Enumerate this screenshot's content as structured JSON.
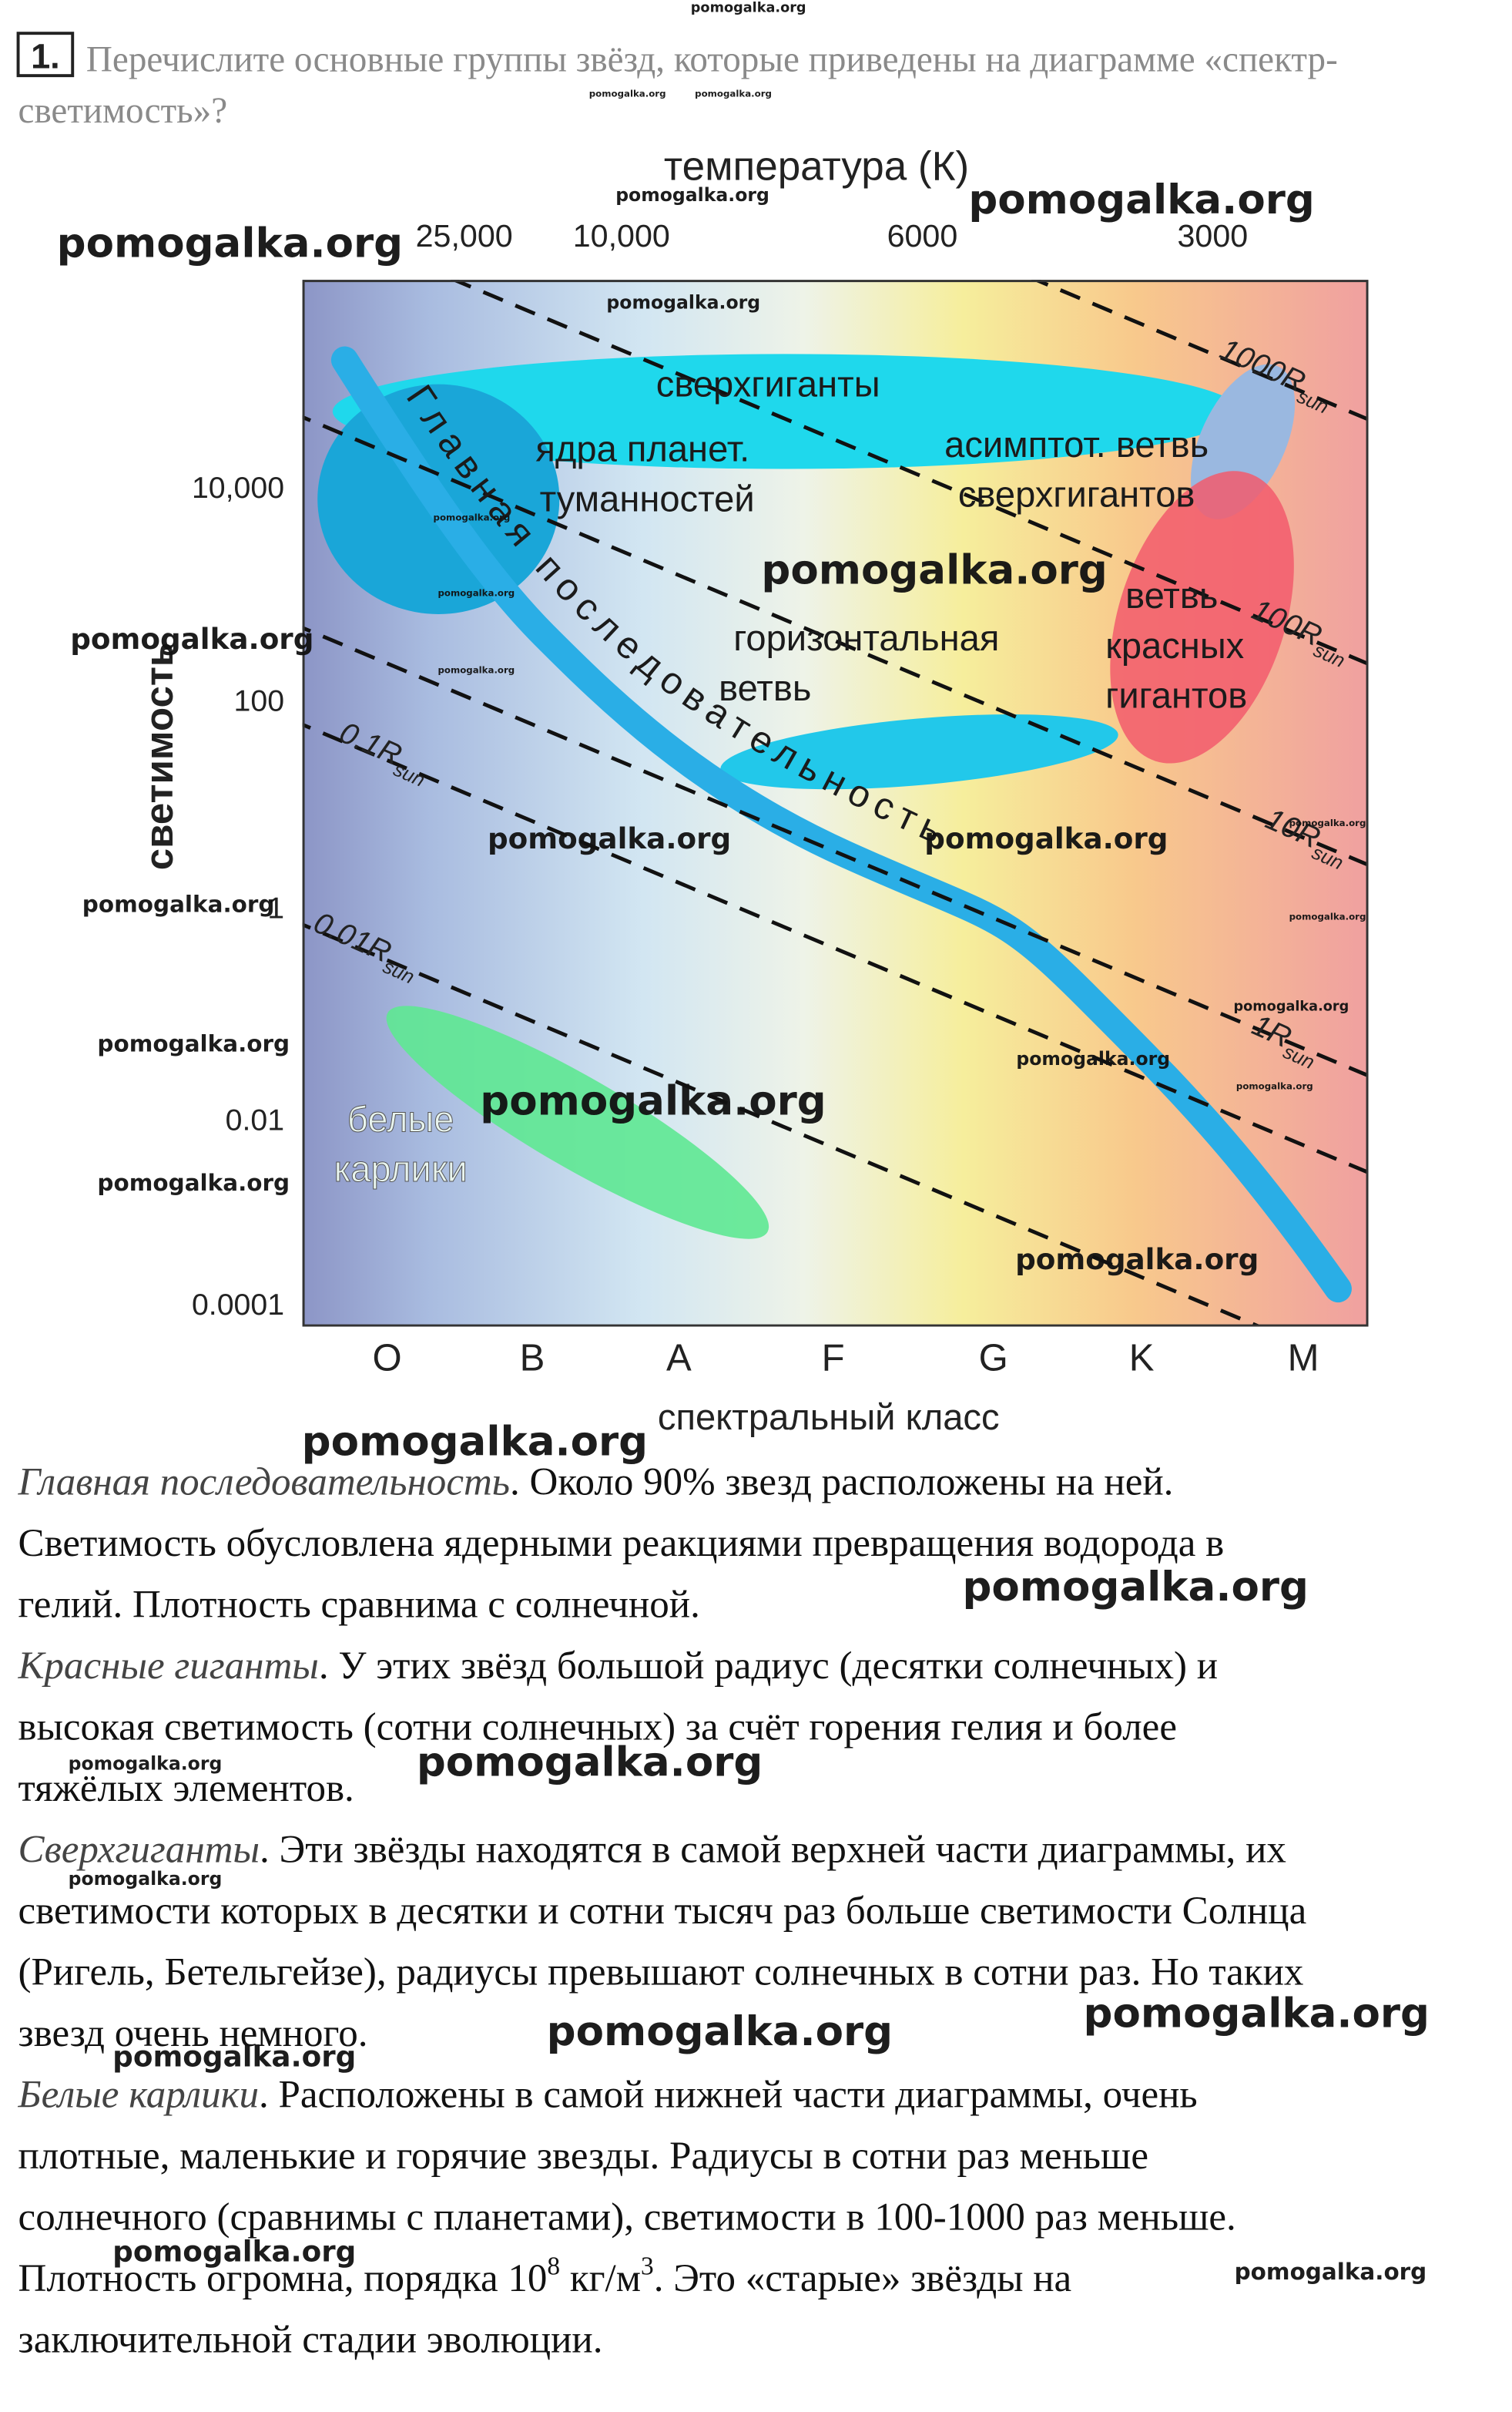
{
  "question": {
    "number": "1.",
    "lines": [
      "Перечислите основные группы звёзд, которые приведены на диаграмме «спектр-",
      "светимость»?"
    ]
  },
  "diagram": {
    "title": "температура (К)",
    "top_ticks": [
      "25,000",
      "10,000",
      "6000",
      "3000"
    ],
    "left_ticks": [
      "10,000",
      "100",
      "1",
      "0.01",
      "0.0001"
    ],
    "y_label": "светимость",
    "bottom_ticks": [
      "O",
      "B",
      "A",
      "F",
      "G",
      "K",
      "M"
    ],
    "x_label": "спектральный класс",
    "regions": [
      {
        "lines": [
          "сверхгиганты"
        ]
      },
      {
        "lines": [
          "ядра планет.",
          "туманностей"
        ]
      },
      {
        "lines": [
          "асимптот. ветвь",
          "сверхгигантов"
        ]
      },
      {
        "lines": [
          "горизонтальная",
          "ветвь"
        ]
      },
      {
        "lines": [
          "ветвь",
          "красных",
          "гигантов"
        ]
      },
      {
        "lines": [
          "белые",
          "карлики"
        ]
      }
    ],
    "main_sequence": "Главная последовательность",
    "radius_lines": [
      {
        "text": "1000R",
        "sub": "sun"
      },
      {
        "text": "100R",
        "sub": "sun"
      },
      {
        "text": "10R",
        "sub": "sun"
      },
      {
        "text": "1R",
        "sub": "sun"
      },
      {
        "text": "0.1R",
        "sub": "sun"
      },
      {
        "text": "0.01R",
        "sub": "sun"
      }
    ]
  },
  "paragraphs": [
    {
      "lines": [
        [
          {
            "text": "Главная последовательность",
            "style": "italic"
          },
          {
            "text": ". Около 90% звезд расположены на ней.",
            "style": "normal"
          }
        ],
        [
          {
            "text": "Светимость обусловлена ядерными реакциями превращения водорода в",
            "style": "normal"
          }
        ],
        [
          {
            "text": "гелий. Плотность сравнима с солнечной.",
            "style": "normal"
          }
        ]
      ]
    },
    {
      "lines": [
        [
          {
            "text": "Красные гиганты",
            "style": "italic"
          },
          {
            "text": ". У этих звёзд большой радиус (десятки солнечных) и",
            "style": "normal"
          }
        ],
        [
          {
            "text": "высокая светимость (сотни солнечных) за счёт горения гелия и более",
            "style": "normal"
          }
        ],
        [
          {
            "text": "тяжёлых элементов.",
            "style": "normal"
          }
        ]
      ]
    },
    {
      "lines": [
        [
          {
            "text": "Сверхгиганты",
            "style": "italic"
          },
          {
            "text": ".  Эти звёзды находятся в самой верхней части диаграммы, их",
            "style": "normal"
          }
        ],
        [
          {
            "text": "светимости которых в десятки и сотни тысяч раз больше светимости Солнца",
            "style": "normal"
          }
        ],
        [
          {
            "text": "(Ригель, Бетельгейзе), радиусы превышают солнечных в сотни раз. Но таких",
            "style": "normal"
          }
        ],
        [
          {
            "text": "звезд очень немного.",
            "style": "normal"
          }
        ]
      ]
    },
    {
      "lines": [
        [
          {
            "text": "Белые карлики",
            "style": "italic"
          },
          {
            "text": ". Расположены в самой нижней части диаграммы, очень",
            "style": "normal"
          }
        ],
        [
          {
            "text": "плотные, маленькие и горячие звезды. Радиусы в сотни раз меньше",
            "style": "normal"
          }
        ],
        [
          {
            "text": "солнечного (сравнимы с планетами), светимости в 100-1000 раз меньше.",
            "style": "normal"
          }
        ],
        [
          {
            "text": "Плотность огромна, порядка 10",
            "style": "normal"
          },
          {
            "text": "8",
            "style": "sup"
          },
          {
            "text": " кг/м",
            "style": "normal"
          },
          {
            "text": "3",
            "style": "sup"
          },
          {
            "text": ". Это «старые» звёзды на",
            "style": "normal"
          }
        ],
        [
          {
            "text": "заключительной стадии эволюции.",
            "style": "normal"
          }
        ]
      ]
    }
  ],
  "watermarks": [
    "pomogalka.org",
    "pomogalka.org",
    "pomogalka.org",
    "pomogalka.org",
    "pomogalka.org",
    "pomogalka.org",
    "pomogalka.org",
    "pomogalka.org",
    "pomogalka.org",
    "pomogalka.org",
    "pomogalka.org",
    "pomogalka.org",
    "pomogalka.org",
    "pomogalka.org",
    "pomogalka.org",
    "pomogalka.org",
    "pomogalka.org",
    "pomogalka.org",
    "pomogalka.org",
    "pomogalka.org",
    "pomogalka.org",
    "pomogalka.org",
    "pomogalka.org",
    "pomogalka.org",
    "pomogalka.org",
    "pomogalka.org",
    "pomogalka.org",
    "pomogalka.org",
    "pomogalka.org",
    "pomogalka.org",
    "pomogalka.org",
    "pomogalka.org",
    "pomogalka.org",
    "pomogalka.org"
  ]
}
